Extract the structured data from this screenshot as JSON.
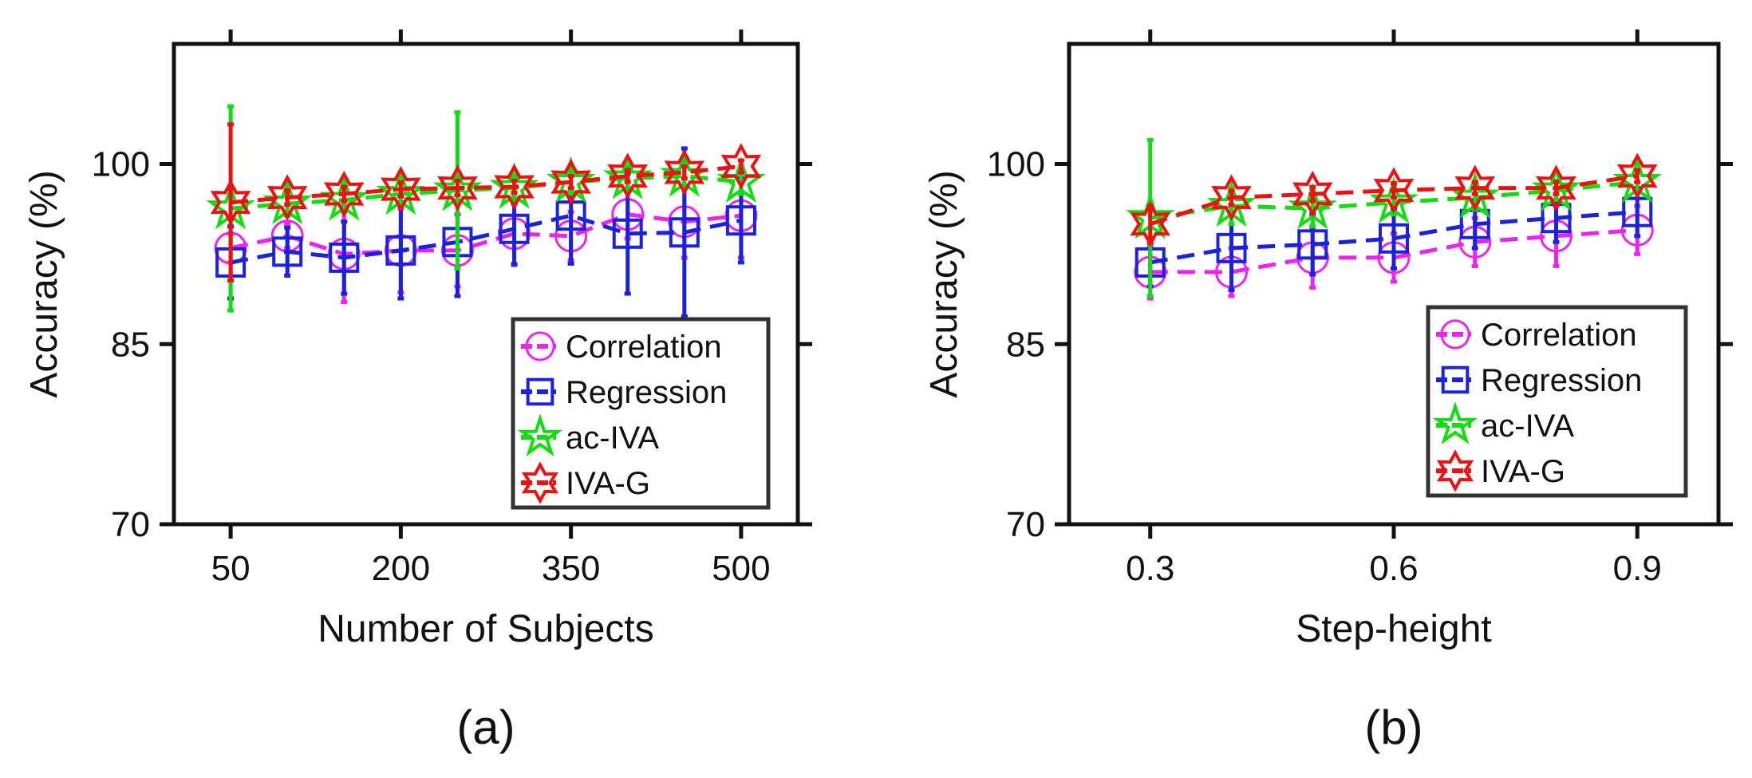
{
  "chart_data": [
    {
      "type": "line",
      "panel_label": "(a)",
      "xlabel": "Number of Subjects",
      "ylabel": "Accuracy (%)",
      "xlim": [
        0,
        550
      ],
      "ylim": [
        70,
        110
      ],
      "xticks": [
        50,
        200,
        350,
        500
      ],
      "xtick_labels": [
        "50",
        "200",
        "350",
        "500"
      ],
      "yticks": [
        70,
        85,
        100
      ],
      "ytick_labels": [
        "70",
        "85",
        "100"
      ],
      "x": [
        50,
        100,
        150,
        200,
        250,
        300,
        350,
        400,
        450,
        500
      ],
      "legend_position": "bottom-right",
      "series": [
        {
          "name": "Correlation",
          "color": "#ee22ee",
          "marker": "circle",
          "values": [
            93.0,
            94.0,
            92.5,
            92.8,
            92.8,
            94.2,
            94.0,
            95.8,
            95.2,
            95.7
          ],
          "err": [
            1.2,
            1.0,
            4.0,
            3.5,
            3.0,
            2.5,
            2.0,
            2.0,
            3.0,
            3.5
          ]
        },
        {
          "name": "Regression",
          "color": "#1a22dd",
          "marker": "square",
          "values": [
            91.8,
            92.7,
            92.2,
            92.8,
            93.5,
            94.6,
            95.7,
            94.2,
            94.3,
            95.3
          ],
          "err": [
            3.0,
            2.0,
            3.0,
            4.0,
            4.5,
            3.0,
            4.0,
            5.0,
            7.0,
            3.5
          ]
        },
        {
          "name": "ac-IVA",
          "color": "#11dd11",
          "marker": "star5",
          "values": [
            96.3,
            96.7,
            97.0,
            97.5,
            97.8,
            98.0,
            98.5,
            98.8,
            99.0,
            98.5
          ],
          "err": [
            8.5,
            1.0,
            1.0,
            1.0,
            6.5,
            1.0,
            1.0,
            1.0,
            1.0,
            1.0
          ]
        },
        {
          "name": "IVA-G",
          "color": "#ee1111",
          "marker": "hexagram",
          "values": [
            96.8,
            97.2,
            97.5,
            97.9,
            98.0,
            98.1,
            98.5,
            99.0,
            99.3,
            99.8
          ],
          "err": [
            6.5,
            0.6,
            0.6,
            0.6,
            0.6,
            0.5,
            0.5,
            0.5,
            0.5,
            0.5
          ]
        }
      ]
    },
    {
      "type": "line",
      "panel_label": "(b)",
      "xlabel": "Step-height",
      "ylabel": "Accuracy (%)",
      "xlim": [
        0.2,
        1.0
      ],
      "ylim": [
        70,
        110
      ],
      "xticks": [
        0.3,
        0.6,
        0.9
      ],
      "xtick_labels": [
        "0.3",
        "0.6",
        "0.9"
      ],
      "yticks": [
        70,
        85,
        100
      ],
      "ytick_labels": [
        "70",
        "85",
        "100"
      ],
      "x": [
        0.3,
        0.4,
        0.5,
        0.6,
        0.7,
        0.8,
        0.9
      ],
      "legend_position": "bottom-right",
      "series": [
        {
          "name": "Correlation",
          "color": "#ee22ee",
          "marker": "circle",
          "values": [
            91.0,
            91.0,
            92.2,
            92.2,
            93.5,
            94.0,
            94.5
          ],
          "err": [
            2.2,
            2.0,
            2.5,
            2.0,
            2.0,
            2.5,
            2.0
          ]
        },
        {
          "name": "Regression",
          "color": "#1a22dd",
          "marker": "square",
          "values": [
            91.8,
            93.0,
            93.3,
            93.8,
            95.0,
            95.5,
            96.0
          ],
          "err": [
            2.0,
            3.5,
            2.5,
            2.5,
            2.0,
            2.0,
            2.0
          ]
        },
        {
          "name": "ac-IVA",
          "color": "#11dd11",
          "marker": "star5",
          "values": [
            95.5,
            96.5,
            96.3,
            96.8,
            97.2,
            97.8,
            98.5
          ],
          "err": [
            6.5,
            1.5,
            1.5,
            1.0,
            1.0,
            0.8,
            0.8
          ]
        },
        {
          "name": "IVA-G",
          "color": "#ee1111",
          "marker": "hexagram",
          "values": [
            95.0,
            97.2,
            97.5,
            97.8,
            98.0,
            98.0,
            99.0
          ],
          "err": [
            1.5,
            0.6,
            0.6,
            0.6,
            0.5,
            0.5,
            0.5
          ]
        }
      ]
    }
  ]
}
